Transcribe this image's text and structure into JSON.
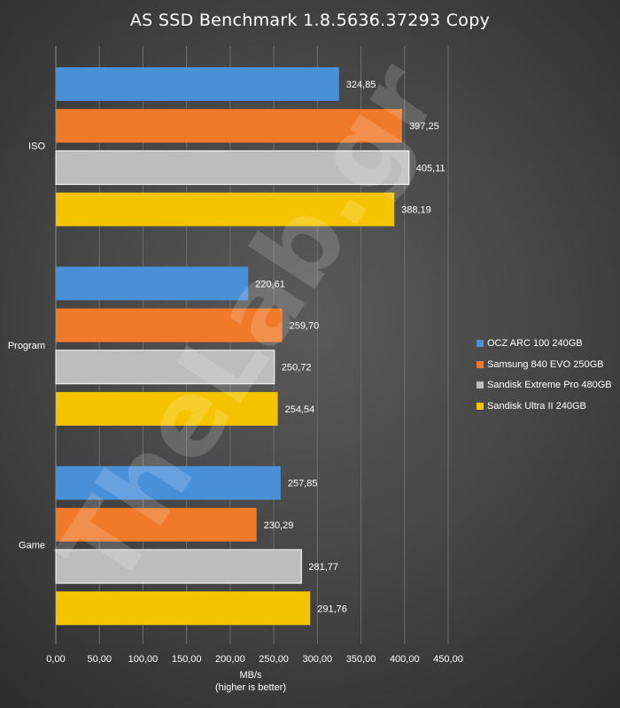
{
  "chart_data": {
    "type": "bar",
    "orientation": "horizontal",
    "title": "AS SSD Benchmark  1.8.5636.37293  Copy",
    "xlabel": [
      "MB/s",
      "(higher is better)"
    ],
    "ylabel": "",
    "categories": [
      "ISO",
      "Program",
      "Game"
    ],
    "series": [
      {
        "name": "OCZ ARC 100 240GB",
        "color": "#4a90d9",
        "values": [
          324.85,
          220.61,
          257.85
        ],
        "labels": [
          "324,85",
          "220,61",
          "257,85"
        ]
      },
      {
        "name": "Samsung 840 EVO 250GB",
        "color": "#f07a2a",
        "values": [
          397.25,
          259.7,
          230.29
        ],
        "labels": [
          "397,25",
          "259,70",
          "230,29"
        ]
      },
      {
        "name": "Sandisk Extreme Pro 480GB",
        "color": "#bdbdbd",
        "values": [
          405.11,
          250.72,
          281.77
        ],
        "labels": [
          "405,11",
          "250,72",
          "281,77"
        ]
      },
      {
        "name": "Sandisk Ultra II 240GB",
        "color": "#f5c400",
        "values": [
          388.19,
          254.54,
          291.76
        ],
        "labels": [
          "388,19",
          "254,54",
          "291,76"
        ]
      }
    ],
    "xlim": [
      0,
      450
    ],
    "xticks": [
      "0,00",
      "50,00",
      "100,00",
      "150,00",
      "200,00",
      "250,00",
      "300,00",
      "350,00",
      "400,00",
      "450,00"
    ],
    "grid": true,
    "legend": "right"
  },
  "watermark": "TheLab.gr"
}
